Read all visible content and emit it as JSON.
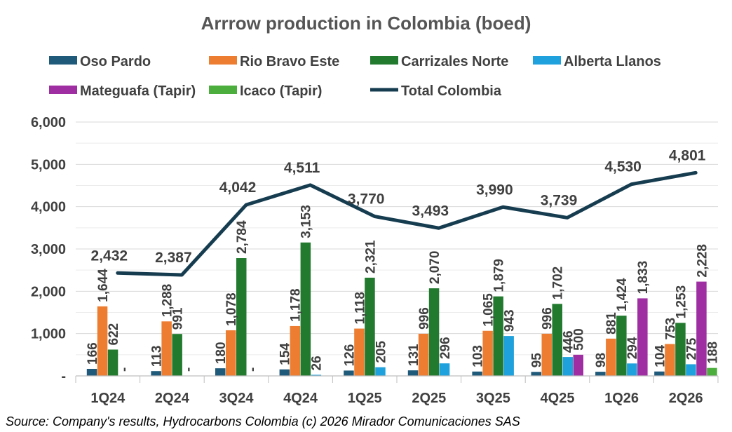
{
  "chart_data": {
    "type": "bar",
    "title": "Arrrow production in Colombia (boed)",
    "categories": [
      "1Q24",
      "2Q24",
      "3Q24",
      "4Q24",
      "1Q25",
      "2Q25",
      "3Q25",
      "4Q25",
      "1Q26",
      "2Q26"
    ],
    "ylim": [
      0,
      6000
    ],
    "yticks": [
      0,
      1000,
      2000,
      3000,
      4000,
      5000,
      6000
    ],
    "ytick_labels": [
      "-",
      "1,000",
      "2,000",
      "3,000",
      "4,000",
      "5,000",
      "6,000"
    ],
    "grid": true,
    "legend_position": "top",
    "series": [
      {
        "name": "Oso Pardo",
        "color": "#1f5a7a",
        "values": [
          166,
          113,
          180,
          154,
          126,
          131,
          103,
          95,
          98,
          104
        ],
        "labels": [
          "166",
          "113",
          "180",
          "154",
          "126",
          "131",
          "103",
          "95",
          "98",
          "104"
        ]
      },
      {
        "name": "Rio Bravo Este",
        "color": "#ed7d31",
        "values": [
          1644,
          1288,
          1078,
          1178,
          1118,
          996,
          1065,
          996,
          881,
          753
        ],
        "labels": [
          "1,644",
          "1,288",
          "1,078",
          "1,178",
          "1,118",
          "996",
          "1,065",
          "996",
          "881",
          "753"
        ]
      },
      {
        "name": "Carrizales Norte",
        "color": "#217a2e",
        "values": [
          622,
          991,
          2784,
          3153,
          2321,
          2070,
          1879,
          1702,
          1424,
          1253
        ],
        "labels": [
          "622",
          "991",
          "2,784",
          "3,153",
          "2,321",
          "2,070",
          "1,879",
          "1,702",
          "1,424",
          "1,253"
        ]
      },
      {
        "name": "Alberta Llanos",
        "color": "#1ea1dc",
        "values": [
          0,
          0,
          0,
          26,
          205,
          296,
          943,
          446,
          294,
          275
        ],
        "labels": [
          "-",
          "-",
          "-",
          "26",
          "205",
          "296",
          "943",
          "446",
          "294",
          "275"
        ]
      },
      {
        "name": "Mateguafa (Tapir)",
        "color": "#9e2ea1",
        "values": [
          null,
          null,
          null,
          null,
          null,
          null,
          null,
          500,
          1833,
          2228
        ],
        "labels": [
          null,
          null,
          null,
          null,
          null,
          null,
          null,
          "500",
          "1,833",
          "2,228"
        ]
      },
      {
        "name": "Icaco (Tapir)",
        "color": "#4cae3c",
        "values": [
          null,
          null,
          null,
          null,
          null,
          null,
          null,
          null,
          null,
          188
        ],
        "labels": [
          null,
          null,
          null,
          null,
          null,
          null,
          null,
          null,
          null,
          "188"
        ]
      }
    ],
    "line_series": {
      "name": "Total Colombia",
      "color": "#163c50",
      "values": [
        2432,
        2387,
        4042,
        4511,
        3770,
        3493,
        3990,
        3739,
        4530,
        4801
      ],
      "labels": [
        "2,432",
        "2,387",
        "4,042",
        "4,511",
        "3,770",
        "3,493",
        "3,990",
        "3,739",
        "4,530",
        "4,801"
      ]
    },
    "source": "Source: Company's results, Hydrocarbons Colombia (c) 2026 Mirador Comunicaciones SAS"
  }
}
